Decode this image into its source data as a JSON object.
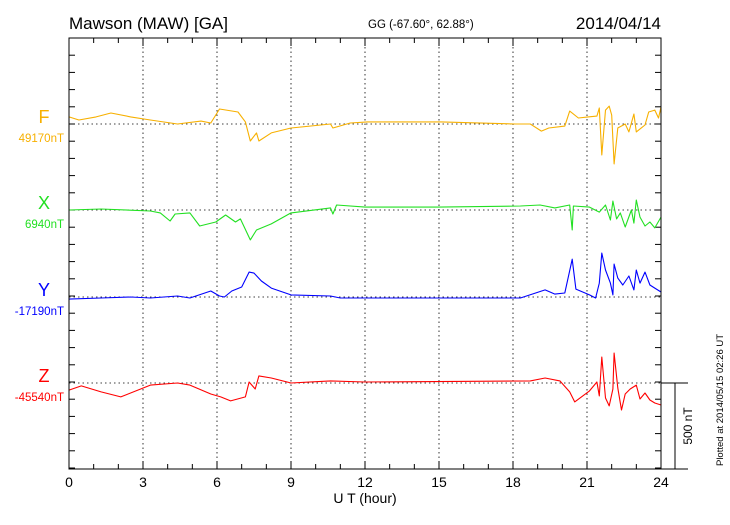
{
  "chart_data": {
    "type": "line",
    "title": "Mawson (MAW)  [GA]",
    "subtitle": "GG (-67.60°,  62.88°)",
    "date": "2014/04/14",
    "xlabel": "U T (hour)",
    "xlim": [
      0,
      24
    ],
    "xticks": [
      "0",
      "3",
      "6",
      "9",
      "12",
      "15",
      "18",
      "21",
      "24"
    ],
    "x_minor_tick_step_hours": 1,
    "y_tick_step_nT": 100,
    "grid": "dotted vertical every 3 h, dotted horizontal at each component baseline",
    "scale_bar_label": "500 nT",
    "scale_bar_nT": 500,
    "footer_note": "Plotted at 2014/05/15 02:26 UT",
    "series": [
      {
        "name": "F",
        "baseline_label": "49170nT",
        "color": "#f7b000",
        "points": [
          [
            0,
            41
          ],
          [
            0.4,
            23
          ],
          [
            1.1,
            41
          ],
          [
            1.7,
            64
          ],
          [
            2.5,
            41
          ],
          [
            3.3,
            23
          ],
          [
            4.4,
            0
          ],
          [
            5.35,
            17
          ],
          [
            5.75,
            6
          ],
          [
            6.1,
            87
          ],
          [
            6.85,
            70
          ],
          [
            7.15,
            12
          ],
          [
            7.35,
            -99
          ],
          [
            7.6,
            -52
          ],
          [
            7.7,
            -99
          ],
          [
            8.2,
            -52
          ],
          [
            9.0,
            -23
          ],
          [
            10.6,
            0
          ],
          [
            10.7,
            -23
          ],
          [
            11.4,
            6
          ],
          [
            12.1,
            12
          ],
          [
            15.1,
            12
          ],
          [
            18.1,
            0
          ],
          [
            18.7,
            0
          ],
          [
            19.15,
            -41
          ],
          [
            19.45,
            -23
          ],
          [
            20.1,
            -12
          ],
          [
            20.3,
            75
          ],
          [
            20.65,
            35
          ],
          [
            21.05,
            41
          ],
          [
            21.4,
            46
          ],
          [
            21.5,
            93
          ],
          [
            21.6,
            -180
          ],
          [
            21.75,
            81
          ],
          [
            21.9,
            104
          ],
          [
            22.0,
            52
          ],
          [
            22.1,
            -232
          ],
          [
            22.25,
            -23
          ],
          [
            22.55,
            0
          ],
          [
            22.7,
            -46
          ],
          [
            22.9,
            58
          ],
          [
            23.0,
            -46
          ],
          [
            23.35,
            -6
          ],
          [
            23.5,
            70
          ],
          [
            23.75,
            81
          ],
          [
            23.9,
            35
          ],
          [
            24,
            99
          ]
        ]
      },
      {
        "name": "X",
        "baseline_label": "6940nT",
        "color": "#22e022",
        "points": [
          [
            0,
            0
          ],
          [
            1.3,
            6
          ],
          [
            3.3,
            -6
          ],
          [
            3.7,
            -17
          ],
          [
            4.1,
            -64
          ],
          [
            4.3,
            -23
          ],
          [
            4.9,
            -17
          ],
          [
            5.3,
            -93
          ],
          [
            5.95,
            -70
          ],
          [
            6.35,
            -29
          ],
          [
            6.75,
            -70
          ],
          [
            6.95,
            -52
          ],
          [
            7.35,
            -174
          ],
          [
            7.6,
            -116
          ],
          [
            8.2,
            -81
          ],
          [
            9.0,
            -17
          ],
          [
            10.6,
            12
          ],
          [
            10.7,
            -23
          ],
          [
            10.85,
            29
          ],
          [
            12,
            17
          ],
          [
            15,
            17
          ],
          [
            18.3,
            23
          ],
          [
            19.1,
            29
          ],
          [
            19.7,
            12
          ],
          [
            20.3,
            29
          ],
          [
            20.4,
            -116
          ],
          [
            20.45,
            23
          ],
          [
            21.1,
            17
          ],
          [
            21.5,
            -12
          ],
          [
            21.75,
            29
          ],
          [
            21.95,
            -58
          ],
          [
            22.05,
            52
          ],
          [
            22.2,
            -52
          ],
          [
            22.35,
            -17
          ],
          [
            22.55,
            -99
          ],
          [
            22.8,
            0
          ],
          [
            22.9,
            -76
          ],
          [
            23.0,
            58
          ],
          [
            23.15,
            -41
          ],
          [
            23.35,
            -93
          ],
          [
            23.55,
            -70
          ],
          [
            23.75,
            -104
          ],
          [
            24,
            -41
          ]
        ]
      },
      {
        "name": "Y",
        "baseline_label": "-17190nT",
        "color": "#0000ff",
        "points": [
          [
            0,
            -12
          ],
          [
            1.3,
            -6
          ],
          [
            2.5,
            0
          ],
          [
            3.3,
            -6
          ],
          [
            4.4,
            6
          ],
          [
            4.9,
            -6
          ],
          [
            5.75,
            35
          ],
          [
            6.1,
            6
          ],
          [
            6.3,
            0
          ],
          [
            6.6,
            35
          ],
          [
            7.0,
            58
          ],
          [
            7.3,
            145
          ],
          [
            7.5,
            139
          ],
          [
            7.8,
            93
          ],
          [
            8.2,
            52
          ],
          [
            9.0,
            12
          ],
          [
            10.6,
            6
          ],
          [
            11.0,
            -6
          ],
          [
            12,
            -6
          ],
          [
            18.3,
            -6
          ],
          [
            19.3,
            41
          ],
          [
            19.7,
            17
          ],
          [
            20.1,
            23
          ],
          [
            20.4,
            220
          ],
          [
            20.55,
            46
          ],
          [
            21.1,
            12
          ],
          [
            21.35,
            -6
          ],
          [
            21.5,
            81
          ],
          [
            21.6,
            255
          ],
          [
            21.75,
            157
          ],
          [
            21.95,
            81
          ],
          [
            22.05,
            12
          ],
          [
            22.1,
            191
          ],
          [
            22.25,
            110
          ],
          [
            22.45,
            70
          ],
          [
            22.7,
            122
          ],
          [
            22.9,
            41
          ],
          [
            23.0,
            157
          ],
          [
            23.15,
            81
          ],
          [
            23.35,
            145
          ],
          [
            23.55,
            70
          ],
          [
            23.75,
            52
          ],
          [
            24,
            29
          ]
        ]
      },
      {
        "name": "Z",
        "baseline_label": "-45540nT",
        "color": "#ff0000",
        "points": [
          [
            0,
            -41
          ],
          [
            0.5,
            -17
          ],
          [
            1.3,
            -52
          ],
          [
            2.1,
            -81
          ],
          [
            3.3,
            -12
          ],
          [
            4.4,
            0
          ],
          [
            4.9,
            -12
          ],
          [
            5.75,
            -64
          ],
          [
            6.15,
            -81
          ],
          [
            6.55,
            -104
          ],
          [
            7.15,
            -81
          ],
          [
            7.3,
            6
          ],
          [
            7.55,
            -35
          ],
          [
            7.7,
            41
          ],
          [
            8.2,
            29
          ],
          [
            9.0,
            0
          ],
          [
            10.6,
            12
          ],
          [
            12,
            6
          ],
          [
            18.7,
            12
          ],
          [
            19.3,
            29
          ],
          [
            19.9,
            12
          ],
          [
            20.3,
            -52
          ],
          [
            20.5,
            -110
          ],
          [
            21.1,
            -46
          ],
          [
            21.4,
            6
          ],
          [
            21.5,
            -75
          ],
          [
            21.6,
            151
          ],
          [
            21.75,
            -87
          ],
          [
            21.9,
            -133
          ],
          [
            22.05,
            -35
          ],
          [
            22.1,
            174
          ],
          [
            22.25,
            -29
          ],
          [
            22.4,
            -157
          ],
          [
            22.55,
            -64
          ],
          [
            22.75,
            -35
          ],
          [
            23.0,
            -12
          ],
          [
            23.15,
            -93
          ],
          [
            23.35,
            -58
          ],
          [
            23.55,
            -99
          ],
          [
            23.75,
            -116
          ],
          [
            24,
            -128
          ]
        ]
      }
    ]
  }
}
